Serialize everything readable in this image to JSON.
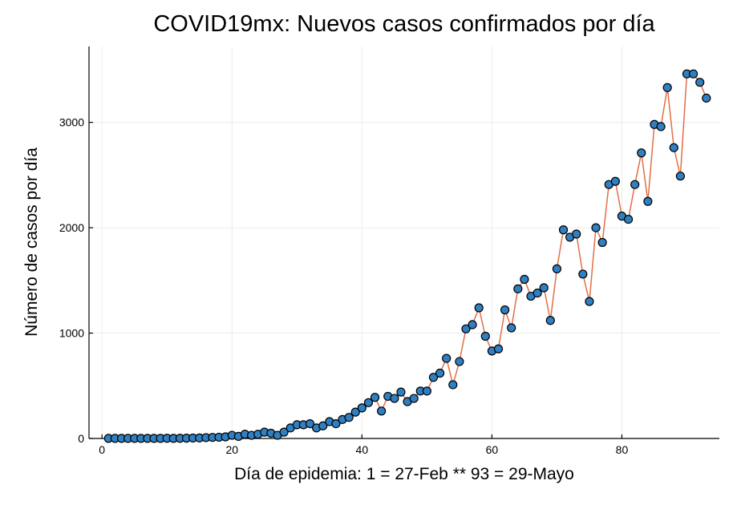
{
  "chart_data": {
    "type": "line",
    "title": "COVID19mx: Nuevos casos confirmados por día",
    "xlabel": "Día de epidemia: 1 = 27-Feb ** 93 = 29-Mayo",
    "ylabel": "Número de casos por día",
    "xlim": [
      -2,
      95
    ],
    "ylim": [
      0,
      3720
    ],
    "xticks": [
      0,
      20,
      40,
      60,
      80
    ],
    "yticks": [
      0,
      1000,
      2000,
      3000
    ],
    "grid": true,
    "legend": "none",
    "colors": {
      "line": "#e26f46",
      "marker": "#2f7fc1",
      "marker_edge": "#000000"
    },
    "series": [
      {
        "values": [
          [
            1,
            1
          ],
          [
            2,
            1
          ],
          [
            3,
            1
          ],
          [
            4,
            1
          ],
          [
            5,
            1
          ],
          [
            6,
            1
          ],
          [
            7,
            1
          ],
          [
            8,
            1
          ],
          [
            9,
            1
          ],
          [
            10,
            2
          ],
          [
            11,
            1
          ],
          [
            12,
            2
          ],
          [
            13,
            3
          ],
          [
            14,
            4
          ],
          [
            15,
            5
          ],
          [
            16,
            8
          ],
          [
            17,
            10
          ],
          [
            18,
            12
          ],
          [
            19,
            15
          ],
          [
            20,
            30
          ],
          [
            21,
            20
          ],
          [
            22,
            40
          ],
          [
            23,
            30
          ],
          [
            24,
            40
          ],
          [
            25,
            60
          ],
          [
            26,
            50
          ],
          [
            27,
            30
          ],
          [
            28,
            60
          ],
          [
            29,
            100
          ],
          [
            30,
            130
          ],
          [
            31,
            130
          ],
          [
            32,
            140
          ],
          [
            33,
            100
          ],
          [
            34,
            120
          ],
          [
            35,
            160
          ],
          [
            36,
            140
          ],
          [
            37,
            180
          ],
          [
            38,
            200
          ],
          [
            39,
            250
          ],
          [
            40,
            290
          ],
          [
            41,
            340
          ],
          [
            42,
            390
          ],
          [
            43,
            260
          ],
          [
            44,
            400
          ],
          [
            45,
            380
          ],
          [
            46,
            440
          ],
          [
            47,
            350
          ],
          [
            48,
            380
          ],
          [
            49,
            450
          ],
          [
            50,
            450
          ],
          [
            51,
            580
          ],
          [
            52,
            620
          ],
          [
            53,
            760
          ],
          [
            54,
            510
          ],
          [
            55,
            730
          ],
          [
            56,
            1040
          ],
          [
            57,
            1080
          ],
          [
            58,
            1240
          ],
          [
            59,
            970
          ],
          [
            60,
            830
          ],
          [
            61,
            850
          ],
          [
            62,
            1220
          ],
          [
            63,
            1050
          ],
          [
            64,
            1420
          ],
          [
            65,
            1510
          ],
          [
            66,
            1350
          ],
          [
            67,
            1380
          ],
          [
            68,
            1430
          ],
          [
            69,
            1120
          ],
          [
            70,
            1610
          ],
          [
            71,
            1980
          ],
          [
            72,
            1910
          ],
          [
            73,
            1940
          ],
          [
            74,
            1560
          ],
          [
            75,
            1300
          ],
          [
            76,
            2000
          ],
          [
            77,
            1860
          ],
          [
            78,
            2410
          ],
          [
            79,
            2440
          ],
          [
            80,
            2110
          ],
          [
            81,
            2080
          ],
          [
            82,
            2410
          ],
          [
            83,
            2710
          ],
          [
            84,
            2250
          ],
          [
            85,
            2980
          ],
          [
            86,
            2960
          ],
          [
            87,
            3330
          ],
          [
            88,
            2760
          ],
          [
            89,
            2490
          ],
          [
            90,
            3460
          ],
          [
            91,
            3460
          ],
          [
            92,
            3380
          ],
          [
            93,
            3230
          ]
        ]
      }
    ]
  }
}
